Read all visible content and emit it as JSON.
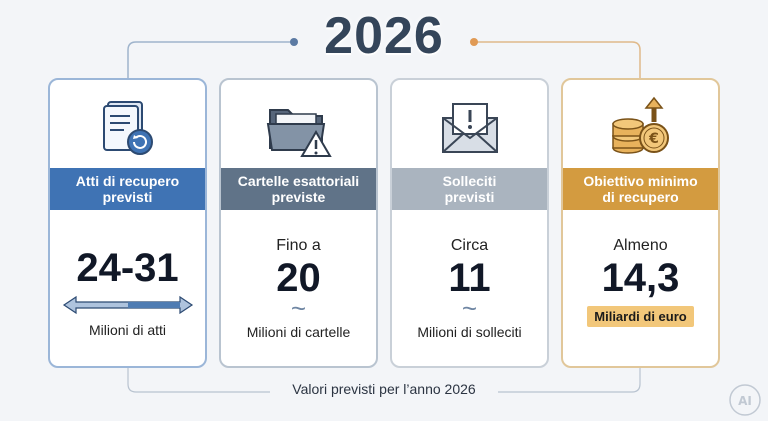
{
  "year": "2026",
  "cards": [
    {
      "title_line1": "Atti di recupero",
      "title_line2": "previsti",
      "prefix": "",
      "value": "24-31",
      "unit": "Milioni di atti",
      "icon": "document-refresh-icon",
      "indicator": "double-arrow"
    },
    {
      "title_line1": "Cartelle esattoriali",
      "title_line2": "previste",
      "prefix": "Fino a",
      "value": "20",
      "unit": "Milioni di cartelle",
      "icon": "folder-warning-icon",
      "indicator": "tilde"
    },
    {
      "title_line1": "Solleciti",
      "title_line2": "previsti",
      "prefix": "Circa",
      "value": "11",
      "unit": "Milioni di solleciti",
      "icon": "envelope-alert-icon",
      "indicator": "tilde"
    },
    {
      "title_line1": "Obiettivo minimo",
      "title_line2": "di recupero",
      "prefix": "Almeno",
      "value": "14,3",
      "unit": "Miliardi di euro",
      "icon": "coins-euro-up-icon",
      "indicator": "none"
    }
  ],
  "footer": "Valori previsti per l’anno 2026",
  "tilde_glyph": "~",
  "watermark": "AI",
  "colors": {
    "band1": "#3f73b4",
    "band2": "#607388",
    "band3": "#aab4bf",
    "band4": "#d39b40",
    "highlight": "#f2c77a",
    "year": "#34455a"
  }
}
